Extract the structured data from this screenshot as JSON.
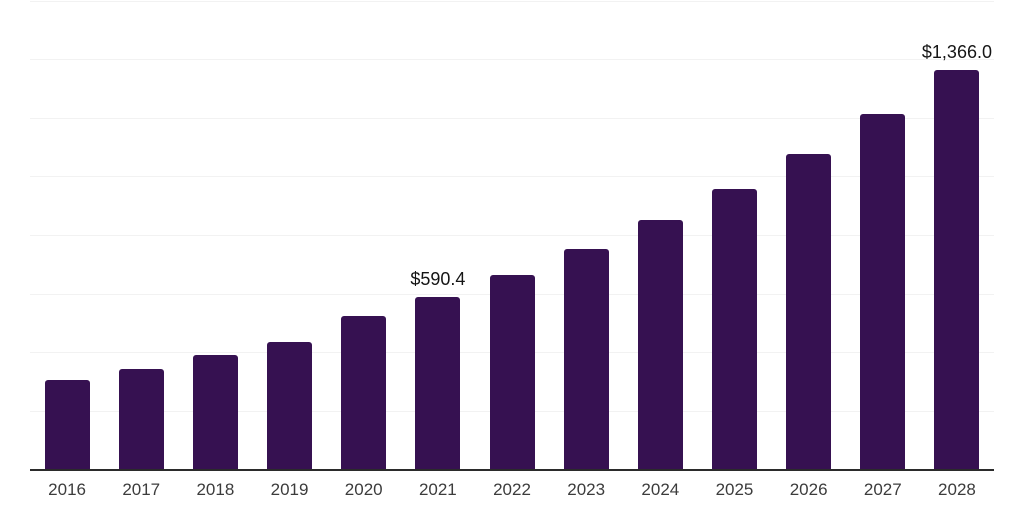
{
  "chart_data": {
    "type": "bar",
    "title": "",
    "xlabel": "",
    "ylabel": "",
    "categories": [
      "2016",
      "2017",
      "2018",
      "2019",
      "2020",
      "2021",
      "2022",
      "2023",
      "2024",
      "2025",
      "2026",
      "2027",
      "2028"
    ],
    "values": [
      308,
      346,
      391,
      437,
      527,
      590.4,
      667,
      753,
      852,
      960,
      1079,
      1215,
      1366
    ],
    "points": [
      {
        "year": "2016",
        "value": 308,
        "label": null
      },
      {
        "year": "2017",
        "value": 346,
        "label": null
      },
      {
        "year": "2018",
        "value": 391,
        "label": null
      },
      {
        "year": "2019",
        "value": 437,
        "label": null
      },
      {
        "year": "2020",
        "value": 527,
        "label": null
      },
      {
        "year": "2021",
        "value": 590.4,
        "label": "$590.4"
      },
      {
        "year": "2022",
        "value": 667,
        "label": null
      },
      {
        "year": "2023",
        "value": 753,
        "label": null
      },
      {
        "year": "2024",
        "value": 852,
        "label": null
      },
      {
        "year": "2025",
        "value": 960,
        "label": null
      },
      {
        "year": "2026",
        "value": 1079,
        "label": null
      },
      {
        "year": "2027",
        "value": 1215,
        "label": null
      },
      {
        "year": "2028",
        "value": 1366,
        "label": "$1,366.0"
      }
    ],
    "data_labels_visible": [
      "$590.4",
      "$1,366.0"
    ],
    "ylim": [
      0,
      1600
    ],
    "gridline_step": 200,
    "grid": "horizontal",
    "legend": "none",
    "y_axis_labels_visible": false,
    "colors": {
      "bar": "#361151",
      "gridline": "#f2f2f2",
      "axis_line": "#2b2b2b",
      "tick_label": "#3c3c3c",
      "data_label": "#151515",
      "background": "#ffffff"
    }
  }
}
